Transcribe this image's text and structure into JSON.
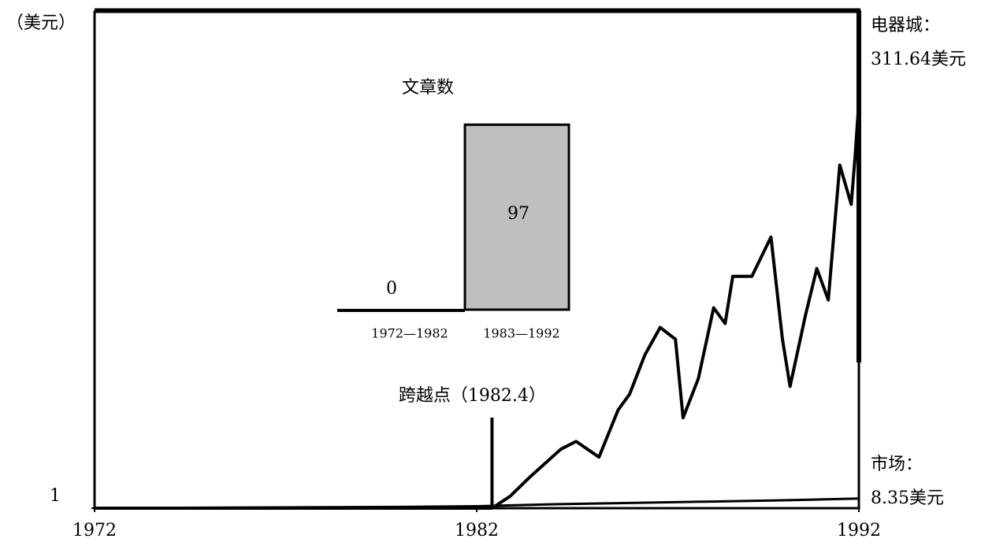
{
  "chart_data": [
    {
      "type": "line",
      "y_label": "（美元）",
      "xlim": [
        1972,
        1992
      ],
      "xticks": [
        1972,
        1982,
        1992
      ],
      "ylim": [
        1,
        380
      ],
      "yticks": [
        1
      ],
      "series": [
        {
          "name": "电器城：",
          "end_label": "311.64美元",
          "color": "#000000",
          "x": [
            1972,
            1976,
            1980,
            1982,
            1982.4,
            1982.87,
            1983.4,
            1984.2,
            1984.6,
            1985.2,
            1985.7,
            1986,
            1986.4,
            1986.8,
            1987.2,
            1987.4,
            1987.8,
            1988.2,
            1988.5,
            1988.7,
            1989.2,
            1989.7,
            1990,
            1990.2,
            1990.6,
            1990.9,
            1991.2,
            1991.5,
            1991.8,
            1991.9,
            1992
          ],
          "values": [
            1,
            1,
            1,
            1,
            1,
            10,
            25,
            46,
            52,
            40,
            76,
            88,
            118,
            139,
            130,
            70,
            100,
            154,
            142,
            178,
            178,
            208,
            130,
            94,
            148,
            184,
            160,
            263,
            233,
            269,
            311.64
          ]
        },
        {
          "name": "市场：",
          "end_label": "8.35美元",
          "color": "#000000",
          "x": [
            1972,
            1976,
            1980,
            1982,
            1984,
            1986,
            1988,
            1990,
            1992
          ],
          "values": [
            1,
            1.5,
            2,
            2.5,
            4,
            5,
            6,
            7,
            8.35
          ]
        }
      ],
      "annotation": {
        "label": "跨越点（1982.4）",
        "x": 1982.4
      }
    },
    {
      "type": "bar",
      "title": "文章数",
      "categories": [
        "1972—1982",
        "1983—1992"
      ],
      "values": [
        0,
        97
      ],
      "color": "#bfbfbf",
      "ylim": [
        0,
        100
      ]
    }
  ]
}
